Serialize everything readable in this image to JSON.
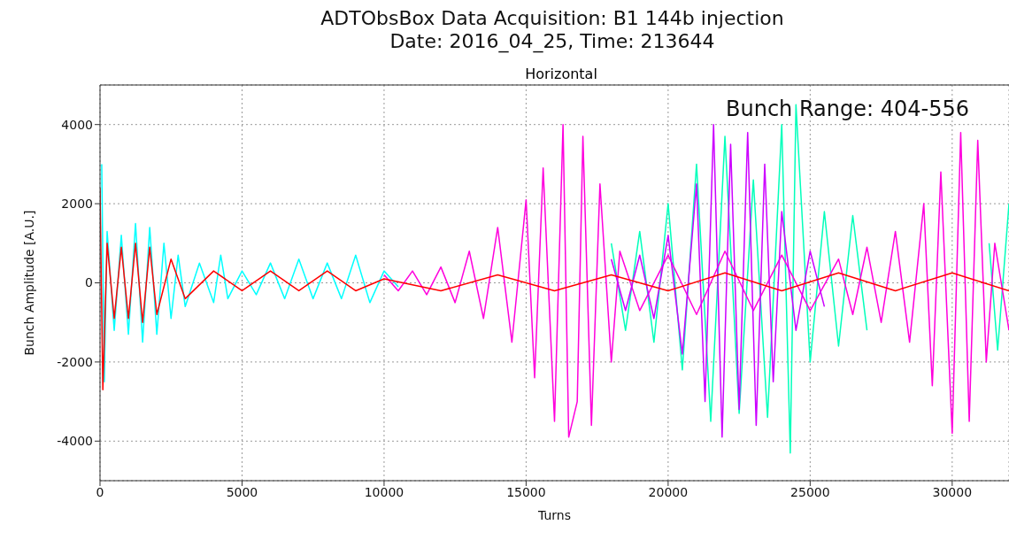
{
  "chart_data": {
    "type": "line",
    "title": "ADTObsBox Data Acquisition: B1 144b injection\nDate: 2016_04_25, Time: 213644",
    "subtitle": "Horizontal",
    "xlabel": "Turns",
    "ylabel": "Bunch Amplitude [A.U.]",
    "annotations": [
      "Bunch Range: 404-556"
    ],
    "xlim": [
      0,
      32000
    ],
    "xticks": [
      0,
      5000,
      10000,
      15000,
      20000,
      25000,
      30000
    ],
    "ylim": [
      -5000,
      5000
    ],
    "yticks": [
      -4000,
      -2000,
      0,
      2000,
      4000
    ],
    "grid": true,
    "marker": "none",
    "line_style": "solid",
    "series": [
      {
        "color": "#00ffff",
        "x": [
          60,
          150,
          250,
          500,
          750,
          1000,
          1250,
          1500,
          1750,
          2000,
          2250,
          2500,
          2750,
          3000,
          3500,
          4000,
          4250,
          4500,
          5000,
          5500,
          6000,
          6500,
          7000,
          7500,
          8000,
          8500,
          9000,
          9500,
          10000,
          10500
        ],
        "values": [
          3000,
          -2500,
          1300,
          -1200,
          1200,
          -1300,
          1500,
          -1500,
          1400,
          -1300,
          1000,
          -900,
          700,
          -600,
          500,
          -500,
          700,
          -400,
          300,
          -300,
          500,
          -400,
          600,
          -400,
          500,
          -400,
          700,
          -500,
          300,
          -100
        ]
      },
      {
        "color": "#00ffbb",
        "x": [
          18000,
          18500,
          19000,
          19500,
          20000,
          20500,
          21000,
          21500,
          22000,
          22500,
          23000,
          23500,
          24000,
          24300,
          24500,
          25000,
          25500,
          26000,
          26500,
          27000,
          27500,
          31300,
          31600,
          32000
        ],
        "values": [
          1000,
          -1200,
          1300,
          -1500,
          2000,
          -2200,
          3000,
          -3500,
          3700,
          -3300,
          2600,
          -3400,
          4000,
          -4300,
          4500,
          -2000,
          1800,
          -1600,
          1700,
          -1200,
          null,
          1000,
          -1700,
          2000
        ]
      },
      {
        "color": "#ff00dd",
        "x": [
          10000,
          10500,
          11000,
          11500,
          12000,
          12500,
          13000,
          13500,
          14000,
          14500,
          15000,
          15300,
          15600,
          16000,
          16300,
          16500,
          16800,
          17000,
          17300,
          17600,
          18000,
          18300,
          19000,
          20000,
          21000,
          22000,
          23000,
          24000,
          25000,
          26000,
          26500,
          27000,
          27500,
          28000,
          28500,
          29000,
          29300,
          29600,
          30000,
          30300,
          30600,
          30900,
          31200,
          31500,
          32000
        ],
        "values": [
          200,
          -200,
          300,
          -300,
          400,
          -500,
          800,
          -900,
          1400,
          -1500,
          2100,
          -2400,
          2900,
          -3500,
          4000,
          -3900,
          -3000,
          3700,
          -3600,
          2500,
          -2000,
          800,
          -700,
          700,
          -800,
          800,
          -700,
          700,
          -700,
          600,
          -800,
          900,
          -1000,
          1300,
          -1500,
          2000,
          -2600,
          2800,
          -3800,
          3800,
          -3500,
          3600,
          -2000,
          1000,
          -1200
        ]
      },
      {
        "color": "#cc00ff",
        "x": [
          18000,
          18500,
          19000,
          19500,
          20000,
          20500,
          21000,
          21300,
          21600,
          21900,
          22200,
          22500,
          22800,
          23100,
          23400,
          23700,
          24000,
          24500,
          25000,
          25500
        ],
        "values": [
          600,
          -700,
          700,
          -900,
          1200,
          -1800,
          2500,
          -3000,
          4000,
          -3900,
          3500,
          -3200,
          3800,
          -3600,
          3000,
          -2500,
          1800,
          -1200,
          800,
          -600
        ]
      },
      {
        "color": "#ff0000",
        "x": [
          0,
          100,
          250,
          500,
          750,
          1000,
          1250,
          1500,
          1750,
          2000,
          2500,
          3000,
          4000,
          5000,
          6000,
          7000,
          8000,
          9000,
          10000,
          12000,
          14000,
          16000,
          18000,
          20000,
          22000,
          24000,
          26000,
          28000,
          30000,
          32000
        ],
        "values": [
          2400,
          -2700,
          1000,
          -900,
          900,
          -900,
          1000,
          -1000,
          900,
          -800,
          600,
          -400,
          300,
          -200,
          300,
          -200,
          300,
          -200,
          100,
          -200,
          200,
          -200,
          200,
          -200,
          250,
          -200,
          250,
          -200,
          250,
          -200
        ]
      }
    ]
  }
}
